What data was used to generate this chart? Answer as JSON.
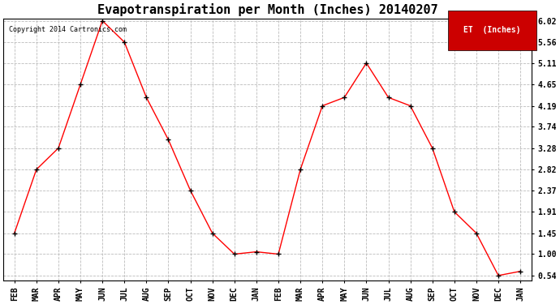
{
  "months": [
    "FEB",
    "MAR",
    "APR",
    "MAY",
    "JUN",
    "JUL",
    "AUG",
    "SEP",
    "OCT",
    "NOV",
    "DEC",
    "JAN",
    "FEB",
    "MAR",
    "APR",
    "MAY",
    "JUN",
    "JUL",
    "AUG",
    "SEP",
    "OCT",
    "NOV",
    "DEC",
    "JAN"
  ],
  "values": [
    1.45,
    2.82,
    3.28,
    4.65,
    6.02,
    5.56,
    4.37,
    3.46,
    2.37,
    1.45,
    1.0,
    1.05,
    1.0,
    2.82,
    4.19,
    4.37,
    5.11,
    4.37,
    4.19,
    3.28,
    1.91,
    1.45,
    0.54,
    0.63
  ],
  "title": "Evapotranspiration per Month (Inches) 20140207",
  "yticks": [
    0.54,
    1.0,
    1.45,
    1.91,
    2.37,
    2.82,
    3.28,
    3.74,
    4.19,
    4.65,
    5.11,
    5.56,
    6.02
  ],
  "line_color": "red",
  "marker_color": "black",
  "legend_label": "ET  (Inches)",
  "legend_bg": "#cc0000",
  "legend_text_color": "white",
  "copyright_text": "Copyright 2014 Cartronics.com",
  "background_color": "white",
  "grid_color": "#bbbbbb",
  "title_fontsize": 11,
  "tick_fontsize": 7,
  "ylim_min": 0.54,
  "ylim_max": 6.02
}
